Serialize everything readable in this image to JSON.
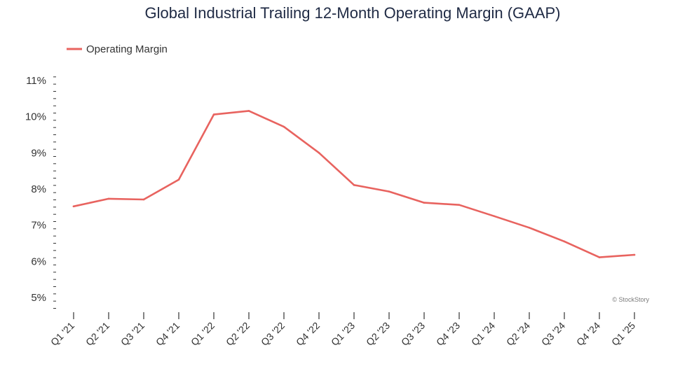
{
  "chart_data": {
    "type": "line",
    "title": "Global Industrial Trailing 12-Month Operating Margin (GAAP)",
    "xlabel": "",
    "ylabel": "",
    "categories": [
      "Q1 '21",
      "Q2 '21",
      "Q3 '21",
      "Q4 '21",
      "Q1 '22",
      "Q2 '22",
      "Q3 '22",
      "Q4 '22",
      "Q1 '23",
      "Q2 '23",
      "Q3 '23",
      "Q4 '23",
      "Q1 '24",
      "Q2 '24",
      "Q3 '24",
      "Q4 '24",
      "Q1 '25"
    ],
    "series": [
      {
        "name": "Operating Margin",
        "color": "#e8635f",
        "values": [
          7.52,
          7.73,
          7.71,
          8.26,
          10.06,
          10.16,
          9.72,
          9.0,
          8.11,
          7.93,
          7.62,
          7.56,
          7.25,
          6.93,
          6.55,
          6.11,
          6.18
        ]
      }
    ],
    "ylim": [
      4.7,
      11.2
    ],
    "yticks": [
      5,
      6,
      7,
      8,
      9,
      10,
      11
    ],
    "ytick_labels": [
      "5%",
      "6%",
      "7%",
      "8%",
      "9%",
      "10%",
      "11%"
    ],
    "grid": false,
    "legend": "top-left",
    "watermark": "© StockStory"
  }
}
